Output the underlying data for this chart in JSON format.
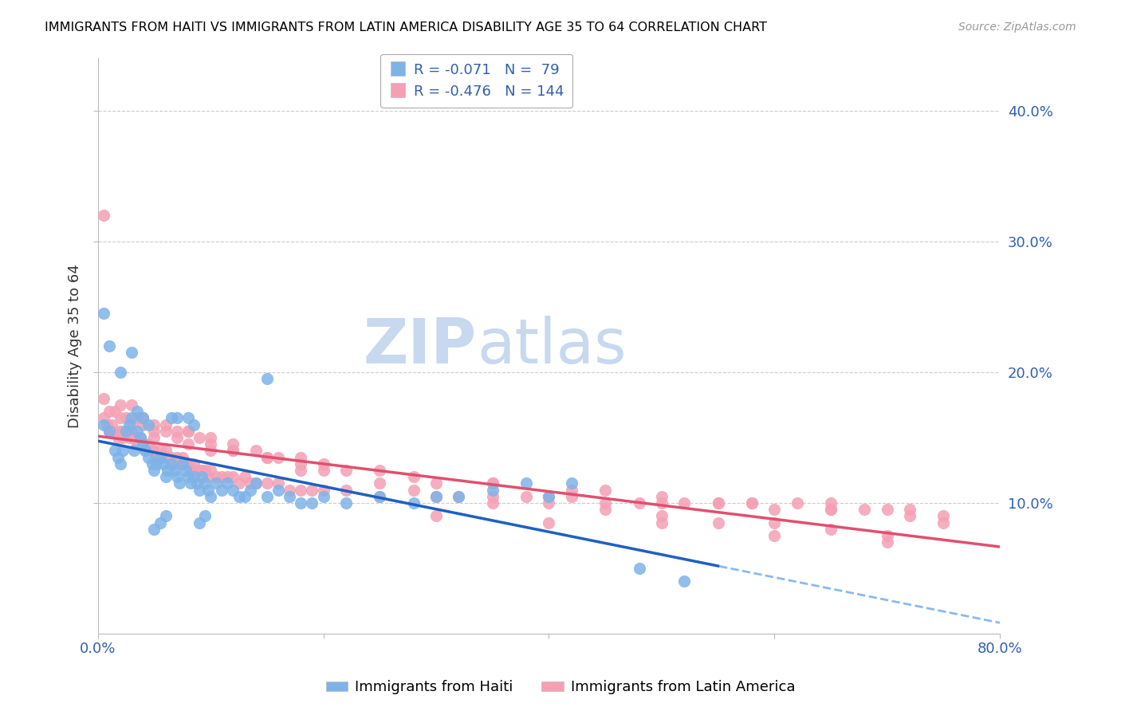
{
  "title": "IMMIGRANTS FROM HAITI VS IMMIGRANTS FROM LATIN AMERICA DISABILITY AGE 35 TO 64 CORRELATION CHART",
  "source": "Source: ZipAtlas.com",
  "ylabel": "Disability Age 35 to 64",
  "xlim": [
    0.0,
    0.8
  ],
  "ylim": [
    0.0,
    0.44
  ],
  "haiti_R": -0.071,
  "haiti_N": 79,
  "latam_R": -0.476,
  "latam_N": 144,
  "haiti_color": "#7eb3e8",
  "latam_color": "#f4a0b4",
  "haiti_line_color": "#2060c0",
  "latam_line_color": "#e05070",
  "trendline_dashed_color": "#7eb3e8",
  "watermark_color": "#c8d8ee",
  "background_color": "#ffffff",
  "grid_color": "#cccccc",
  "title_color": "#000000",
  "axis_label_color": "#3060b0",
  "legend_R1": "R = -0.071",
  "legend_N1": "N =  79",
  "legend_R2": "R = -0.476",
  "legend_N2": "N = 144",
  "legend_label1": "Immigrants from Haiti",
  "legend_label2": "Immigrants from Latin America",
  "haiti_x": [
    0.005,
    0.01,
    0.015,
    0.018,
    0.02,
    0.022,
    0.025,
    0.028,
    0.03,
    0.032,
    0.035,
    0.038,
    0.04,
    0.042,
    0.045,
    0.048,
    0.05,
    0.052,
    0.055,
    0.058,
    0.06,
    0.062,
    0.065,
    0.068,
    0.07,
    0.072,
    0.075,
    0.078,
    0.08,
    0.082,
    0.085,
    0.088,
    0.09,
    0.092,
    0.095,
    0.098,
    0.1,
    0.105,
    0.11,
    0.115,
    0.12,
    0.125,
    0.13,
    0.135,
    0.14,
    0.15,
    0.16,
    0.17,
    0.18,
    0.19,
    0.2,
    0.22,
    0.25,
    0.28,
    0.3,
    0.32,
    0.35,
    0.38,
    0.4,
    0.42,
    0.005,
    0.01,
    0.02,
    0.03,
    0.035,
    0.04,
    0.045,
    0.05,
    0.055,
    0.06,
    0.065,
    0.07,
    0.08,
    0.085,
    0.09,
    0.095,
    0.15,
    0.48,
    0.52
  ],
  "haiti_y": [
    0.16,
    0.155,
    0.14,
    0.135,
    0.13,
    0.14,
    0.155,
    0.16,
    0.165,
    0.14,
    0.155,
    0.15,
    0.145,
    0.14,
    0.135,
    0.13,
    0.125,
    0.13,
    0.135,
    0.13,
    0.12,
    0.125,
    0.13,
    0.125,
    0.12,
    0.115,
    0.13,
    0.125,
    0.12,
    0.115,
    0.12,
    0.115,
    0.11,
    0.12,
    0.115,
    0.11,
    0.105,
    0.115,
    0.11,
    0.115,
    0.11,
    0.105,
    0.105,
    0.11,
    0.115,
    0.105,
    0.11,
    0.105,
    0.1,
    0.1,
    0.105,
    0.1,
    0.105,
    0.1,
    0.105,
    0.105,
    0.11,
    0.115,
    0.105,
    0.115,
    0.245,
    0.22,
    0.2,
    0.215,
    0.17,
    0.165,
    0.16,
    0.08,
    0.085,
    0.09,
    0.165,
    0.165,
    0.165,
    0.16,
    0.085,
    0.09,
    0.195,
    0.05,
    0.04
  ],
  "latam_x": [
    0.005,
    0.008,
    0.01,
    0.012,
    0.015,
    0.018,
    0.02,
    0.022,
    0.025,
    0.028,
    0.03,
    0.032,
    0.035,
    0.038,
    0.04,
    0.042,
    0.045,
    0.048,
    0.05,
    0.052,
    0.055,
    0.058,
    0.06,
    0.062,
    0.065,
    0.068,
    0.07,
    0.072,
    0.075,
    0.078,
    0.08,
    0.082,
    0.085,
    0.088,
    0.09,
    0.092,
    0.095,
    0.098,
    0.1,
    0.105,
    0.11,
    0.115,
    0.12,
    0.125,
    0.13,
    0.135,
    0.14,
    0.15,
    0.16,
    0.17,
    0.18,
    0.19,
    0.2,
    0.22,
    0.25,
    0.28,
    0.3,
    0.32,
    0.35,
    0.38,
    0.4,
    0.42,
    0.45,
    0.48,
    0.5,
    0.52,
    0.55,
    0.58,
    0.6,
    0.62,
    0.65,
    0.68,
    0.7,
    0.72,
    0.75,
    0.005,
    0.01,
    0.015,
    0.02,
    0.025,
    0.03,
    0.035,
    0.04,
    0.05,
    0.06,
    0.07,
    0.08,
    0.09,
    0.1,
    0.12,
    0.15,
    0.18,
    0.22,
    0.28,
    0.35,
    0.42,
    0.5,
    0.58,
    0.65,
    0.72,
    0.05,
    0.08,
    0.12,
    0.18,
    0.25,
    0.35,
    0.45,
    0.55,
    0.65,
    0.75,
    0.02,
    0.04,
    0.06,
    0.08,
    0.1,
    0.12,
    0.14,
    0.16,
    0.18,
    0.2,
    0.25,
    0.3,
    0.35,
    0.4,
    0.45,
    0.5,
    0.55,
    0.6,
    0.65,
    0.7,
    0.005,
    0.01,
    0.02,
    0.03,
    0.05,
    0.07,
    0.1,
    0.15,
    0.2,
    0.3,
    0.4,
    0.5,
    0.6,
    0.7
  ],
  "latam_y": [
    0.165,
    0.16,
    0.155,
    0.16,
    0.155,
    0.15,
    0.155,
    0.15,
    0.155,
    0.15,
    0.155,
    0.15,
    0.145,
    0.15,
    0.145,
    0.14,
    0.145,
    0.14,
    0.14,
    0.135,
    0.14,
    0.135,
    0.14,
    0.135,
    0.135,
    0.13,
    0.135,
    0.13,
    0.135,
    0.13,
    0.13,
    0.125,
    0.13,
    0.125,
    0.125,
    0.125,
    0.125,
    0.12,
    0.125,
    0.12,
    0.12,
    0.12,
    0.12,
    0.115,
    0.12,
    0.115,
    0.115,
    0.115,
    0.115,
    0.11,
    0.11,
    0.11,
    0.11,
    0.11,
    0.105,
    0.11,
    0.105,
    0.105,
    0.1,
    0.105,
    0.1,
    0.105,
    0.1,
    0.1,
    0.1,
    0.1,
    0.1,
    0.1,
    0.095,
    0.1,
    0.1,
    0.095,
    0.095,
    0.095,
    0.09,
    0.18,
    0.17,
    0.17,
    0.165,
    0.165,
    0.16,
    0.165,
    0.165,
    0.16,
    0.155,
    0.15,
    0.155,
    0.15,
    0.145,
    0.14,
    0.135,
    0.135,
    0.125,
    0.12,
    0.115,
    0.11,
    0.105,
    0.1,
    0.095,
    0.09,
    0.155,
    0.145,
    0.14,
    0.13,
    0.125,
    0.115,
    0.11,
    0.1,
    0.095,
    0.085,
    0.175,
    0.16,
    0.16,
    0.155,
    0.15,
    0.145,
    0.14,
    0.135,
    0.125,
    0.125,
    0.115,
    0.115,
    0.105,
    0.105,
    0.095,
    0.09,
    0.085,
    0.085,
    0.08,
    0.075,
    0.32,
    0.155,
    0.155,
    0.175,
    0.15,
    0.155,
    0.14,
    0.135,
    0.13,
    0.09,
    0.085,
    0.085,
    0.075,
    0.07
  ]
}
